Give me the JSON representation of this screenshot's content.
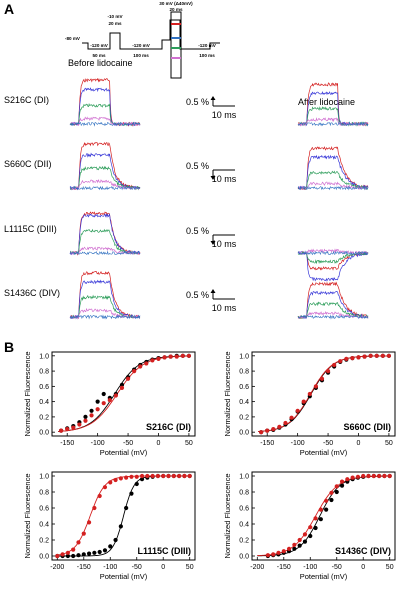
{
  "panel_a": {
    "label": "A",
    "before_label": "Before lidocaine",
    "after_label": "After lidocaine",
    "protocol": {
      "hold_mv": "-80 mV",
      "step1_mv": "-120 mV",
      "step1_ms": "50 ms",
      "step2_mv": "-10 mV",
      "step2_ms": "20 ms",
      "step3_mv": "-120 mV",
      "step3_ms": "100 ms",
      "test_mv": "30 mV (Δ40mV)",
      "test_ms": "20 ms",
      "step4_mv": "-120 mV",
      "step4_ms": "100 ms"
    },
    "rows": [
      {
        "name": "S216C (DI)",
        "scale_pct": "0.5 %",
        "scale_ms": "10 ms",
        "arrow": "up"
      },
      {
        "name": "S660C (DII)",
        "scale_pct": "0.5 %",
        "scale_ms": "10 ms",
        "arrow": "down"
      },
      {
        "name": "L1115C (DIII)",
        "scale_pct": "0.5 %",
        "scale_ms": "10 ms",
        "arrow": "down"
      },
      {
        "name": "S1436C (DIV)",
        "scale_pct": "0.5 %",
        "scale_ms": "10 ms",
        "arrow": "up"
      }
    ],
    "trace_colors": [
      "#d42020",
      "#3a3ad8",
      "#2d9d5a",
      "#d070d0",
      "#3070c0"
    ]
  },
  "panel_b": {
    "label": "B",
    "before_color": "#000000",
    "after_color": "#d42020"
  },
  "chart_data": [
    {
      "type": "scatter",
      "title": "S216C (DI)",
      "xlabel": "Potential (mV)",
      "ylabel": "Normalized Fluorescence",
      "xlim": [
        -175,
        60
      ],
      "ylim": [
        -0.05,
        1.05
      ],
      "xticks": [
        -150,
        -100,
        -50,
        0,
        50
      ],
      "yticks": [
        0.0,
        0.2,
        0.4,
        0.6,
        0.8,
        1.0
      ],
      "series": [
        {
          "color": "#000000",
          "x": [
            -160,
            -150,
            -140,
            -130,
            -120,
            -110,
            -100,
            -90,
            -80,
            -70,
            -60,
            -50,
            -40,
            -30,
            -20,
            -10,
            0,
            10,
            20,
            30,
            40,
            50
          ],
          "y": [
            0.02,
            0.05,
            0.08,
            0.13,
            0.2,
            0.28,
            0.4,
            0.5,
            0.45,
            0.5,
            0.62,
            0.72,
            0.82,
            0.88,
            0.92,
            0.95,
            0.97,
            0.98,
            0.99,
            1.0,
            1.0,
            1.0
          ]
        },
        {
          "color": "#d42020",
          "x": [
            -160,
            -150,
            -140,
            -130,
            -120,
            -110,
            -100,
            -90,
            -80,
            -70,
            -60,
            -50,
            -40,
            -30,
            -20,
            -10,
            0,
            10,
            20,
            30,
            40,
            50
          ],
          "y": [
            0.02,
            0.04,
            0.06,
            0.1,
            0.15,
            0.22,
            0.3,
            0.38,
            0.42,
            0.48,
            0.58,
            0.7,
            0.8,
            0.86,
            0.9,
            0.94,
            0.96,
            0.98,
            0.99,
            0.99,
            1.0,
            1.0
          ]
        }
      ],
      "fits": [
        {
          "color": "#000000",
          "v_half": -72,
          "k": 20
        },
        {
          "color": "#d42020",
          "v_half": -68,
          "k": 21
        }
      ]
    },
    {
      "type": "scatter",
      "title": "S660C (DII)",
      "xlabel": "Potential (mV)",
      "ylabel": "Normalized Fluorescence",
      "xlim": [
        -175,
        60
      ],
      "ylim": [
        -0.05,
        1.05
      ],
      "xticks": [
        -150,
        -100,
        -50,
        0,
        50
      ],
      "yticks": [
        0.0,
        0.2,
        0.4,
        0.6,
        0.8,
        1.0
      ],
      "series": [
        {
          "color": "#000000",
          "x": [
            -160,
            -150,
            -140,
            -130,
            -120,
            -110,
            -100,
            -90,
            -80,
            -70,
            -60,
            -50,
            -40,
            -30,
            -20,
            -10,
            0,
            10,
            20,
            30,
            40,
            50
          ],
          "y": [
            0.0,
            0.02,
            0.03,
            0.06,
            0.1,
            0.17,
            0.27,
            0.38,
            0.47,
            0.58,
            0.68,
            0.78,
            0.86,
            0.92,
            0.95,
            0.97,
            0.98,
            0.99,
            1.0,
            1.0,
            1.0,
            1.0
          ]
        },
        {
          "color": "#d42020",
          "x": [
            -160,
            -150,
            -140,
            -130,
            -120,
            -110,
            -100,
            -90,
            -80,
            -70,
            -60,
            -50,
            -40,
            -30,
            -20,
            -10,
            0,
            10,
            20,
            30,
            40,
            50
          ],
          "y": [
            0.0,
            0.02,
            0.04,
            0.07,
            0.12,
            0.19,
            0.28,
            0.4,
            0.5,
            0.6,
            0.7,
            0.8,
            0.88,
            0.93,
            0.96,
            0.97,
            0.98,
            0.99,
            1.0,
            1.0,
            1.0,
            1.0
          ]
        }
      ],
      "fits": [
        {
          "color": "#000000",
          "v_half": -78,
          "k": 18
        },
        {
          "color": "#d42020",
          "v_half": -79,
          "k": 18
        }
      ]
    },
    {
      "type": "scatter",
      "title": "L1115C (DIII)",
      "xlabel": "Potential (mV)",
      "ylabel": "Normalized Fluorescence",
      "xlim": [
        -210,
        60
      ],
      "ylim": [
        -0.05,
        1.05
      ],
      "xticks": [
        -200,
        -150,
        -100,
        -50,
        0,
        50
      ],
      "yticks": [
        0.0,
        0.2,
        0.4,
        0.6,
        0.8,
        1.0
      ],
      "series": [
        {
          "color": "#000000",
          "x": [
            -200,
            -190,
            -180,
            -170,
            -160,
            -150,
            -140,
            -130,
            -120,
            -110,
            -100,
            -90,
            -80,
            -70,
            -60,
            -50,
            -40,
            -30,
            -20,
            -10,
            0,
            10,
            20,
            30,
            40,
            50
          ],
          "y": [
            0.0,
            0.0,
            0.0,
            0.0,
            0.01,
            0.02,
            0.03,
            0.04,
            0.05,
            0.07,
            0.12,
            0.2,
            0.37,
            0.6,
            0.78,
            0.9,
            0.96,
            0.98,
            0.99,
            1.0,
            1.0,
            1.0,
            1.0,
            1.0,
            1.0,
            1.0
          ]
        },
        {
          "color": "#d42020",
          "x": [
            -200,
            -190,
            -180,
            -170,
            -160,
            -150,
            -140,
            -130,
            -120,
            -110,
            -100,
            -90,
            -80,
            -70,
            -60,
            -50,
            -40,
            -30,
            -20,
            -10,
            0,
            10,
            20,
            30,
            40,
            50
          ],
          "y": [
            0.0,
            0.02,
            0.04,
            0.08,
            0.17,
            0.28,
            0.42,
            0.6,
            0.75,
            0.86,
            0.92,
            0.95,
            0.97,
            0.98,
            0.99,
            0.99,
            1.0,
            1.0,
            1.0,
            1.0,
            1.0,
            1.0,
            1.0,
            1.0,
            1.0,
            1.0
          ]
        }
      ],
      "fits": [
        {
          "color": "#000000",
          "v_half": -75,
          "k": 10
        },
        {
          "color": "#d42020",
          "v_half": -138,
          "k": 14
        }
      ]
    },
    {
      "type": "scatter",
      "title": "S1436C (DIV)",
      "xlabel": "Potential (mV)",
      "ylabel": "Normalized Fluorescence",
      "xlim": [
        -210,
        60
      ],
      "ylim": [
        -0.05,
        1.05
      ],
      "xticks": [
        -200,
        -150,
        -100,
        -50,
        0,
        50
      ],
      "yticks": [
        0.0,
        0.2,
        0.4,
        0.6,
        0.8,
        1.0
      ],
      "series": [
        {
          "color": "#000000",
          "x": [
            -180,
            -170,
            -160,
            -150,
            -140,
            -130,
            -120,
            -110,
            -100,
            -90,
            -80,
            -70,
            -60,
            -50,
            -40,
            -30,
            -20,
            -10,
            0,
            10,
            20,
            30,
            40,
            50
          ],
          "y": [
            0.0,
            0.01,
            0.02,
            0.04,
            0.06,
            0.09,
            0.13,
            0.18,
            0.25,
            0.35,
            0.46,
            0.58,
            0.7,
            0.8,
            0.88,
            0.93,
            0.96,
            0.98,
            0.99,
            1.0,
            1.0,
            1.0,
            1.0,
            1.0
          ]
        },
        {
          "color": "#d42020",
          "x": [
            -180,
            -170,
            -160,
            -150,
            -140,
            -130,
            -120,
            -110,
            -100,
            -90,
            -80,
            -70,
            -60,
            -50,
            -40,
            -30,
            -20,
            -10,
            0,
            10,
            20,
            30,
            40,
            50
          ],
          "y": [
            0.01,
            0.02,
            0.04,
            0.06,
            0.09,
            0.14,
            0.2,
            0.27,
            0.36,
            0.47,
            0.58,
            0.69,
            0.79,
            0.87,
            0.93,
            0.96,
            0.98,
            0.99,
            1.0,
            1.0,
            1.0,
            1.0,
            1.0,
            1.0
          ]
        }
      ],
      "fits": [
        {
          "color": "#000000",
          "v_half": -82,
          "k": 19
        },
        {
          "color": "#d42020",
          "v_half": -90,
          "k": 21
        }
      ]
    }
  ]
}
